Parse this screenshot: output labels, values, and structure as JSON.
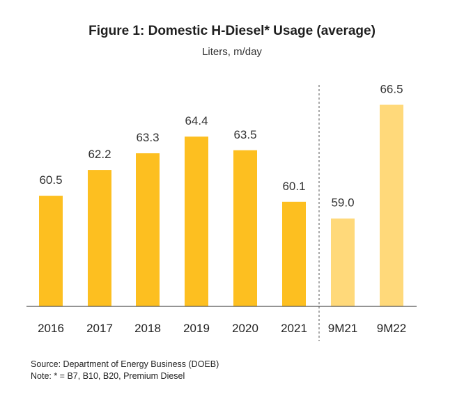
{
  "chart_data": {
    "type": "bar",
    "title": "Figure 1: Domestic H-Diesel* Usage (average)",
    "subtitle": "Liters, m/day",
    "categories": [
      "2016",
      "2017",
      "2018",
      "2019",
      "2020",
      "2021",
      "9M21",
      "9M22"
    ],
    "values": [
      60.5,
      62.2,
      63.3,
      64.4,
      63.5,
      60.1,
      59.0,
      66.5
    ],
    "value_labels": [
      "60.5",
      "62.2",
      "63.3",
      "64.4",
      "63.5",
      "60.1",
      "59.0",
      "66.5"
    ],
    "ylim": [
      53.2,
      67.9
    ],
    "grid": false,
    "separator_after": "2021",
    "colors": {
      "annual": "#FDBF20",
      "ytd": "#FFD97A",
      "separator": "#555555",
      "axis": "#555555"
    }
  },
  "footer": {
    "source": "Source: Department of Energy Business (DOEB)",
    "note": "Note: * = B7, B10, B20, Premium Diesel"
  }
}
